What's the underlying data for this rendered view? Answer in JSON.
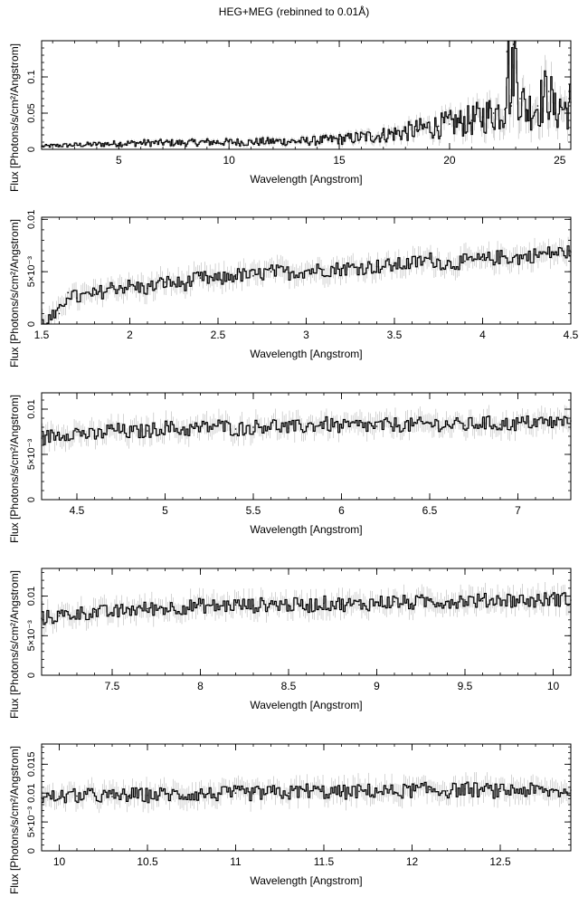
{
  "title": "HEG+MEG (rebinned to 0.01Å)",
  "chart_data": [
    {
      "type": "line",
      "xlabel": "Wavelength [Angstrom]",
      "ylabel": "Flux [Photons/s/cm²/Angstrom]",
      "xlim": [
        1.5,
        25.5
      ],
      "ylim": [
        0,
        0.15
      ],
      "xticks": [
        5,
        10,
        15,
        20,
        25
      ],
      "xtick_labels": [
        "5",
        "10",
        "15",
        "20",
        "25"
      ],
      "yticks": [
        0,
        0.05,
        0.1
      ],
      "ytick_labels": [
        "0",
        "0.05",
        "0.1"
      ],
      "series": [
        {
          "x": [
            1.5,
            2,
            3,
            4,
            5,
            6,
            7,
            8,
            9,
            10,
            11,
            12,
            13,
            14,
            15,
            15.5,
            16,
            16.5,
            17,
            17.5,
            18,
            18.5,
            19,
            19.5,
            20,
            20.5,
            21,
            21.5,
            22,
            22.5,
            22.6,
            22.8,
            22.9,
            23.2,
            23.5,
            24,
            24.5,
            24.8,
            25,
            25.3,
            25.5
          ],
          "y": [
            0.004,
            0.005,
            0.006,
            0.007,
            0.008,
            0.009,
            0.009,
            0.009,
            0.01,
            0.01,
            0.01,
            0.011,
            0.011,
            0.012,
            0.014,
            0.015,
            0.017,
            0.018,
            0.02,
            0.022,
            0.024,
            0.027,
            0.03,
            0.032,
            0.035,
            0.037,
            0.04,
            0.045,
            0.05,
            0.055,
            0.135,
            0.06,
            0.145,
            0.07,
            0.055,
            0.06,
            0.08,
            0.05,
            0.06,
            0.055,
            0.065
          ]
        }
      ]
    },
    {
      "type": "line",
      "xlabel": "Wavelength [Angstrom]",
      "ylabel": "Flux [Photons/s/cm²/Angstrom]",
      "xlim": [
        1.5,
        4.5
      ],
      "ylim": [
        0,
        0.0102
      ],
      "xticks": [
        1.5,
        2,
        2.5,
        3,
        3.5,
        4,
        4.5
      ],
      "xtick_labels": [
        "1.5",
        "2",
        "2.5",
        "3",
        "3.5",
        "4",
        "4.5"
      ],
      "yticks": [
        0,
        0.005,
        0.01
      ],
      "ytick_labels": [
        "0",
        "5×10⁻³",
        "0.01"
      ],
      "series": [
        {
          "x": [
            1.5,
            1.6,
            1.65,
            1.7,
            1.8,
            1.9,
            2.0,
            2.1,
            2.2,
            2.3,
            2.4,
            2.5,
            2.6,
            2.7,
            2.8,
            2.9,
            3.0,
            3.1,
            3.2,
            3.3,
            3.4,
            3.5,
            3.6,
            3.7,
            3.8,
            3.9,
            4.0,
            4.1,
            4.2,
            4.3,
            4.4,
            4.5
          ],
          "y": [
            0.0,
            0.001,
            0.003,
            0.0025,
            0.0028,
            0.0035,
            0.0036,
            0.0034,
            0.004,
            0.0038,
            0.0044,
            0.0042,
            0.0047,
            0.0046,
            0.005,
            0.0049,
            0.0051,
            0.0052,
            0.0053,
            0.0054,
            0.0055,
            0.0056,
            0.0058,
            0.0062,
            0.0057,
            0.006,
            0.0061,
            0.0064,
            0.0063,
            0.0066,
            0.0068,
            0.0069
          ]
        }
      ]
    },
    {
      "type": "line",
      "xlabel": "Wavelength [Angstrom]",
      "ylabel": "Flux [Photons/s/cm²/Angstrom]",
      "xlim": [
        4.3,
        7.3
      ],
      "ylim": [
        0,
        0.0118
      ],
      "xticks": [
        4.5,
        5,
        5.5,
        6,
        6.5,
        7
      ],
      "xtick_labels": [
        "4.5",
        "5",
        "5.5",
        "6",
        "6.5",
        "7"
      ],
      "yticks": [
        0,
        0.005,
        0.01
      ],
      "ytick_labels": [
        "0",
        "5×10⁻³",
        "0.01"
      ],
      "series": [
        {
          "x": [
            4.3,
            4.4,
            4.5,
            4.6,
            4.7,
            4.8,
            4.9,
            5.0,
            5.1,
            5.2,
            5.3,
            5.4,
            5.5,
            5.6,
            5.7,
            5.8,
            5.9,
            6.0,
            6.1,
            6.2,
            6.3,
            6.4,
            6.5,
            6.6,
            6.7,
            6.8,
            6.9,
            7.0,
            7.1,
            7.2,
            7.3
          ],
          "y": [
            0.0068,
            0.0072,
            0.0075,
            0.007,
            0.0078,
            0.0074,
            0.0076,
            0.008,
            0.0077,
            0.0079,
            0.0082,
            0.0078,
            0.008,
            0.0083,
            0.0079,
            0.0081,
            0.0084,
            0.008,
            0.0082,
            0.0081,
            0.0083,
            0.0082,
            0.0084,
            0.0083,
            0.0082,
            0.0085,
            0.0083,
            0.0084,
            0.0086,
            0.0085,
            0.0087
          ]
        }
      ]
    },
    {
      "type": "line",
      "xlabel": "Wavelength [Angstrom]",
      "ylabel": "Flux [Photons/s/cm²/Angstrom]",
      "xlim": [
        7.1,
        10.1
      ],
      "ylim": [
        0,
        0.0135
      ],
      "xticks": [
        7.5,
        8,
        8.5,
        9,
        9.5,
        10
      ],
      "xtick_labels": [
        "7.5",
        "8",
        "8.5",
        "9",
        "9.5",
        "10"
      ],
      "yticks": [
        0,
        0.005,
        0.01
      ],
      "ytick_labels": [
        "0",
        "5×10⁻³",
        "0.01"
      ],
      "series": [
        {
          "x": [
            7.1,
            7.2,
            7.3,
            7.4,
            7.5,
            7.6,
            7.7,
            7.8,
            7.9,
            8.0,
            8.1,
            8.2,
            8.3,
            8.4,
            8.5,
            8.6,
            8.7,
            8.8,
            8.9,
            9.0,
            9.1,
            9.2,
            9.3,
            9.4,
            9.5,
            9.6,
            9.7,
            9.8,
            9.9,
            10.0,
            10.1
          ],
          "y": [
            0.0072,
            0.0075,
            0.0078,
            0.008,
            0.0079,
            0.0083,
            0.0084,
            0.0085,
            0.0086,
            0.0088,
            0.0087,
            0.0089,
            0.0088,
            0.009,
            0.0089,
            0.0088,
            0.0091,
            0.009,
            0.0089,
            0.0092,
            0.0093,
            0.0091,
            0.0094,
            0.0093,
            0.0095,
            0.0094,
            0.0096,
            0.0095,
            0.0094,
            0.0097,
            0.0095
          ]
        }
      ]
    },
    {
      "type": "line",
      "xlabel": "Wavelength [Angstrom]",
      "ylabel": "Flux [Photons/s/cm²/Angstrom]",
      "xlim": [
        9.9,
        12.9
      ],
      "ylim": [
        0,
        0.0185
      ],
      "xticks": [
        10,
        10.5,
        11,
        11.5,
        12,
        12.5
      ],
      "xtick_labels": [
        "10",
        "10.5",
        "11",
        "11.5",
        "12",
        "12.5"
      ],
      "yticks": [
        0,
        0.005,
        0.01,
        0.015
      ],
      "ytick_labels": [
        "0",
        "5×10⁻³",
        "0.01",
        "0.015"
      ],
      "series": [
        {
          "x": [
            9.9,
            10.0,
            10.1,
            10.2,
            10.3,
            10.4,
            10.5,
            10.6,
            10.7,
            10.8,
            10.9,
            11.0,
            11.1,
            11.2,
            11.3,
            11.4,
            11.5,
            11.6,
            11.7,
            11.8,
            11.9,
            12.0,
            12.1,
            12.2,
            12.3,
            12.4,
            12.5,
            12.6,
            12.7,
            12.8,
            12.9
          ],
          "y": [
            0.0092,
            0.0094,
            0.0095,
            0.0096,
            0.0094,
            0.0097,
            0.0096,
            0.0098,
            0.0097,
            0.0099,
            0.0098,
            0.01,
            0.0099,
            0.0101,
            0.01,
            0.0105,
            0.0102,
            0.0101,
            0.0103,
            0.0104,
            0.0102,
            0.0105,
            0.0106,
            0.0104,
            0.0107,
            0.0105,
            0.0103,
            0.0106,
            0.0104,
            0.0102,
            0.0105
          ]
        }
      ]
    }
  ]
}
